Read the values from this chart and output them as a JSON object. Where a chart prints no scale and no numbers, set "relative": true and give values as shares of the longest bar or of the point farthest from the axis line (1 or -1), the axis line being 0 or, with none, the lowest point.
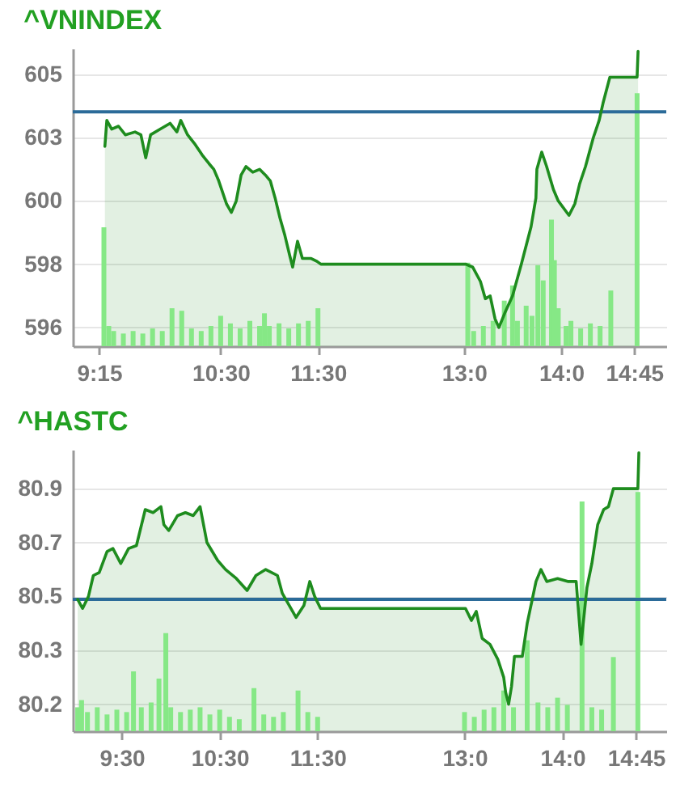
{
  "chart_data": [
    {
      "type": "area",
      "title": "^VNINDEX",
      "series": [
        {
          "color": "#1e8c1e",
          "x": [
            9.31,
            9.33,
            9.38,
            9.45,
            9.52,
            9.62,
            9.68,
            9.73,
            9.78,
            9.88,
            9.98,
            10.05,
            10.09,
            10.16,
            10.23,
            10.31,
            10.38,
            10.43,
            10.48,
            10.53,
            10.56,
            10.61,
            10.66,
            10.71,
            10.76,
            10.83,
            10.9,
            10.96,
            11.01,
            11.06,
            11.11,
            11.16,
            11.21,
            11.24,
            11.29,
            11.34,
            11.43,
            11.49,
            11.53,
            13.02,
            13.09,
            13.17,
            13.22,
            13.27,
            13.32,
            13.36,
            13.42,
            13.5,
            13.59,
            13.69,
            13.74,
            13.75,
            13.8,
            13.85,
            13.92,
            13.97,
            14.08,
            14.14,
            14.19,
            14.25,
            14.33,
            14.39,
            14.43,
            14.5,
            14.78,
            14.79
          ],
          "values": [
            602.3,
            603.2,
            602.9,
            603.0,
            602.7,
            602.8,
            602.7,
            601.9,
            602.7,
            602.9,
            603.1,
            602.8,
            603.2,
            602.7,
            602.4,
            602.0,
            601.7,
            601.5,
            601.1,
            600.6,
            600.3,
            600.0,
            600.4,
            601.3,
            601.6,
            601.4,
            601.5,
            601.3,
            601.1,
            600.5,
            599.8,
            599.2,
            598.5,
            598.1,
            599.0,
            598.4,
            598.4,
            598.3,
            598.2,
            598.2,
            598.1,
            597.6,
            597.0,
            597.1,
            596.3,
            596.0,
            596.5,
            597.1,
            598.2,
            599.5,
            600.5,
            601.5,
            602.1,
            601.6,
            600.8,
            600.4,
            599.9,
            600.3,
            601.0,
            601.6,
            602.6,
            603.2,
            603.8,
            604.7,
            604.7,
            605.6
          ]
        }
      ],
      "xlim": [
        8.98,
        15.08
      ],
      "xticks": [
        {
          "value": 9.25,
          "label": "9:15"
        },
        {
          "value": 10.5,
          "label": "10:30"
        },
        {
          "value": 11.5,
          "label": "11:30"
        },
        {
          "value": 13,
          "label": "13:0"
        },
        {
          "value": 14,
          "label": "14:0"
        },
        {
          "value": 14.75,
          "label": "14:45"
        }
      ],
      "ylim": [
        595.35,
        605.7
      ],
      "yticks": [
        596,
        {
          "value": 598.2,
          "label": "598"
        },
        {
          "value": 600.4,
          "label": "600"
        },
        {
          "value": 602.6,
          "label": "603"
        },
        {
          "value": 604.8,
          "label": "605"
        }
      ],
      "ref_lines": [
        {
          "axis": "y",
          "value": 603.5,
          "color": "#2b6b99"
        }
      ],
      "grid": "y"
    },
    {
      "type": "bar",
      "relative": true,
      "color": "#86e886",
      "xlim": [
        8.98,
        15.08
      ],
      "x": [
        9.3,
        9.35,
        9.4,
        9.5,
        9.6,
        9.7,
        9.8,
        9.9,
        10.0,
        10.1,
        10.2,
        10.3,
        10.4,
        10.5,
        10.6,
        10.7,
        10.8,
        10.9,
        10.95,
        11.0,
        11.1,
        11.2,
        11.3,
        11.4,
        11.5,
        13.04,
        13.1,
        13.2,
        13.3,
        13.415,
        13.5,
        13.55,
        13.64,
        13.7,
        13.76,
        13.815,
        13.9,
        13.93,
        13.97,
        14.05,
        14.1,
        14.2,
        14.3,
        14.4,
        14.51,
        14.78
      ],
      "values": [
        0.47,
        0.08,
        0.06,
        0.05,
        0.06,
        0.05,
        0.07,
        0.06,
        0.15,
        0.14,
        0.07,
        0.06,
        0.08,
        0.12,
        0.09,
        0.07,
        0.1,
        0.08,
        0.13,
        0.08,
        0.09,
        0.07,
        0.09,
        0.1,
        0.15,
        0.33,
        0.06,
        0.08,
        0.1,
        0.18,
        0.24,
        0.1,
        0.16,
        0.12,
        0.32,
        0.26,
        0.5,
        0.34,
        0.15,
        0.08,
        0.1,
        0.07,
        0.09,
        0.08,
        0.22,
        1
      ]
    },
    {
      "type": "area",
      "title": "^HASTC",
      "series": [
        {
          "color": "#1e8c1e",
          "x": [
            9.05,
            9.1,
            9.16,
            9.21,
            9.27,
            9.35,
            9.41,
            9.49,
            9.57,
            9.65,
            9.74,
            9.82,
            9.9,
            9.93,
            9.98,
            10.07,
            10.15,
            10.23,
            10.3,
            10.37,
            10.48,
            10.56,
            10.67,
            10.78,
            10.87,
            10.97,
            11.09,
            11.14,
            11.28,
            11.36,
            11.42,
            11.47,
            11.53,
            13.01,
            13.07,
            13.12,
            13.18,
            13.26,
            13.34,
            13.4,
            13.42,
            13.45,
            13.48,
            13.51,
            13.59,
            13.64,
            13.73,
            13.78,
            13.84,
            13.95,
            14.06,
            14.14,
            14.19,
            14.25,
            14.3,
            14.36,
            14.42,
            14.47,
            14.52,
            14.77,
            14.78
          ],
          "values": [
            80.51,
            80.48,
            80.52,
            80.59,
            80.6,
            80.67,
            80.68,
            80.63,
            80.68,
            80.69,
            80.81,
            80.8,
            80.82,
            80.76,
            80.74,
            80.79,
            80.8,
            80.79,
            80.82,
            80.7,
            80.64,
            80.61,
            80.58,
            80.54,
            80.59,
            80.61,
            80.59,
            80.53,
            80.45,
            80.49,
            80.57,
            80.52,
            80.48,
            80.48,
            80.44,
            80.47,
            80.38,
            80.36,
            80.31,
            80.25,
            80.2,
            80.16,
            80.22,
            80.32,
            80.32,
            80.43,
            80.57,
            80.61,
            80.57,
            80.58,
            80.57,
            80.57,
            80.36,
            80.55,
            80.63,
            80.76,
            80.81,
            80.82,
            80.88,
            80.88,
            81.0
          ]
        }
      ],
      "xlim": [
        9.0,
        15.06
      ],
      "xticks": [
        {
          "value": 9.5,
          "label": "9:30"
        },
        {
          "value": 10.5,
          "label": "10:30"
        },
        {
          "value": 11.5,
          "label": "11:30"
        },
        {
          "value": 13,
          "label": "13:0"
        },
        {
          "value": 14,
          "label": "14:0"
        },
        {
          "value": 14.75,
          "label": "14:45"
        }
      ],
      "ylim": [
        80.07,
        81.01
      ],
      "yticks": [
        {
          "value": 80.16,
          "label": "80.2"
        },
        {
          "value": 80.34,
          "label": "80.3"
        },
        {
          "value": 80.52,
          "label": "80.5"
        },
        80.7,
        {
          "value": 80.88,
          "label": "80.9"
        }
      ],
      "ref_lines": [
        {
          "axis": "y",
          "value": 80.51,
          "color": "#2b6b99"
        }
      ],
      "grid": "y"
    },
    {
      "type": "bar",
      "relative": true,
      "color": "#86e886",
      "xlim": [
        9.0,
        15.06
      ],
      "x": [
        9.05,
        9.09,
        9.15,
        9.25,
        9.35,
        9.45,
        9.55,
        9.62,
        9.7,
        9.8,
        9.88,
        9.95,
        10.0,
        10.1,
        10.2,
        10.3,
        10.4,
        10.5,
        10.6,
        10.7,
        10.85,
        10.95,
        11.05,
        11.15,
        11.3,
        11.4,
        11.5,
        13.0,
        13.1,
        13.2,
        13.3,
        13.4,
        13.5,
        13.64,
        13.75,
        13.85,
        13.95,
        14.05,
        14.2,
        14.3,
        14.4,
        14.52,
        14.77
      ],
      "values": [
        0.1,
        0.13,
        0.08,
        0.1,
        0.07,
        0.09,
        0.08,
        0.25,
        0.1,
        0.12,
        0.22,
        0.41,
        0.1,
        0.08,
        0.09,
        0.1,
        0.07,
        0.09,
        0.06,
        0.05,
        0.18,
        0.07,
        0.06,
        0.08,
        0.17,
        0.08,
        0.06,
        0.08,
        0.06,
        0.09,
        0.1,
        0.17,
        0.1,
        0.38,
        0.12,
        0.1,
        0.14,
        0.11,
        0.96,
        0.1,
        0.09,
        0.31,
        1
      ]
    }
  ]
}
